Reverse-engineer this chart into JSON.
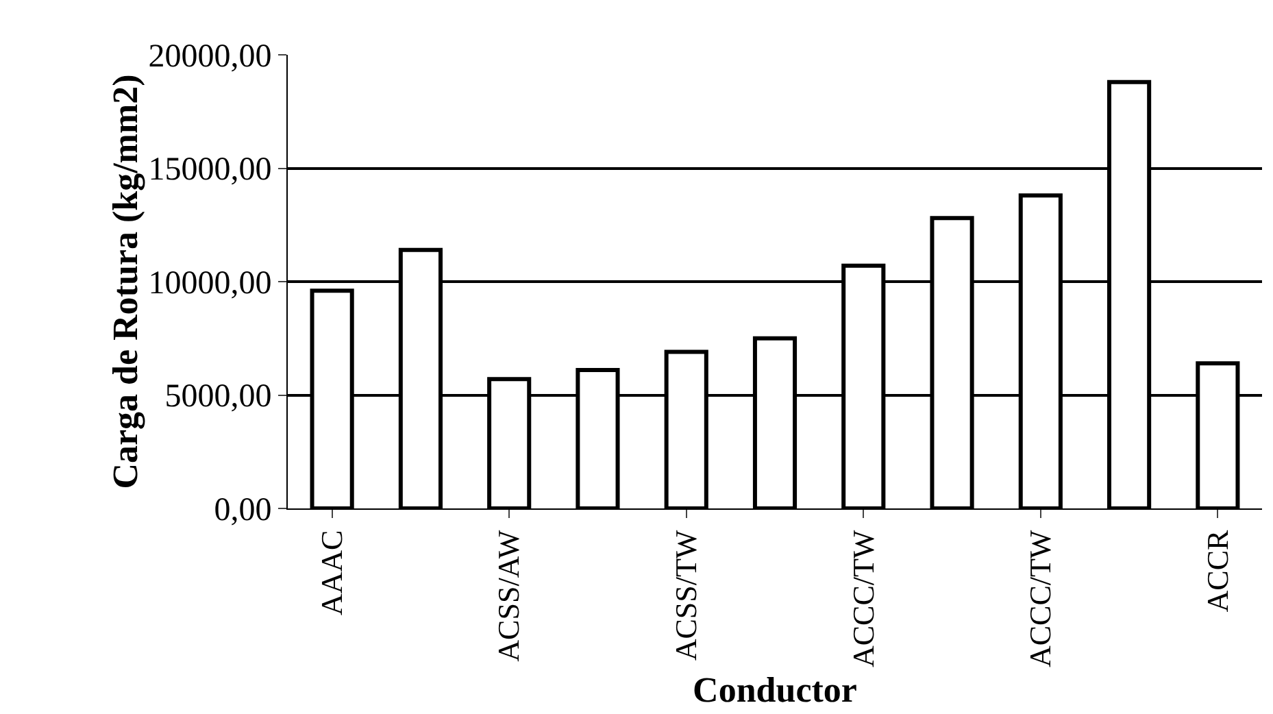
{
  "chart_data": {
    "type": "bar",
    "xlabel": "Conductor",
    "ylabel": "Carga de Rotura (kg/mm2)",
    "categories": [
      "AAAC",
      null,
      "ACSS/AW",
      null,
      "ACSS/TW",
      null,
      "ACCC/TW",
      null,
      "ACCC/TW",
      null,
      "ACCR"
    ],
    "values": [
      9600,
      11400,
      5700,
      6100,
      6900,
      7500,
      10700,
      12800,
      13800,
      18800,
      6400
    ],
    "color": "#ffffff",
    "ylim": [
      0,
      20000
    ],
    "yticks": [
      {
        "value": 0,
        "label": "0,00"
      },
      {
        "value": 5000,
        "label": "5000,00"
      },
      {
        "value": 10000,
        "label": "10000,00"
      },
      {
        "value": 15000,
        "label": "15000,00"
      },
      {
        "value": 20000,
        "label": "20000,00"
      }
    ],
    "grid": "y"
  }
}
